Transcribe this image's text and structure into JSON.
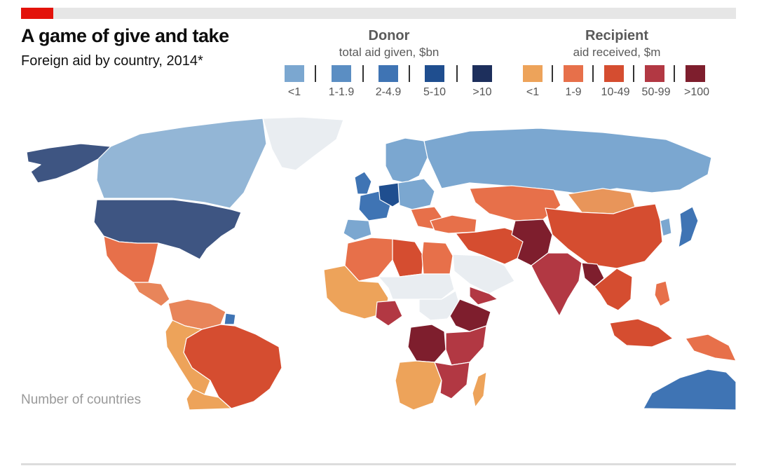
{
  "header": {
    "title": "A game of give and take",
    "subtitle": "Foreign aid by country, 2014*"
  },
  "legend": {
    "donor": {
      "heading": "Donor",
      "subheading": "total aid given, $bn",
      "bins": [
        {
          "label": "<1",
          "color": "#7ba7d0"
        },
        {
          "label": "1-1.9",
          "color": "#5b8ec3"
        },
        {
          "label": "2-4.9",
          "color": "#3f74b4"
        },
        {
          "label": "5-10",
          "color": "#1f4e8f"
        },
        {
          "label": ">10",
          "color": "#1d2f5c"
        }
      ]
    },
    "recipient": {
      "heading": "Recipient",
      "subheading": "aid received, $m",
      "bins": [
        {
          "label": "<1",
          "color": "#eda35a"
        },
        {
          "label": "1-9",
          "color": "#e7704a"
        },
        {
          "label": "10-49",
          "color": "#d54d30"
        },
        {
          "label": "50-99",
          "color": "#b23843"
        },
        {
          "label": ">100",
          "color": "#7e1e2d"
        }
      ]
    }
  },
  "map": {
    "no_data_color": "#e9edf1",
    "countries": [
      {
        "name": "alaska",
        "color": "#3e5582"
      },
      {
        "name": "canada",
        "color": "#93b6d6"
      },
      {
        "name": "greenland",
        "color": "#e9edf1"
      },
      {
        "name": "united-states",
        "color": "#3e5582"
      },
      {
        "name": "mexico",
        "color": "#e7704a"
      },
      {
        "name": "central-america",
        "color": "#e8855a"
      },
      {
        "name": "colombia-venezuela",
        "color": "#e8855a"
      },
      {
        "name": "brazil",
        "color": "#d54d30"
      },
      {
        "name": "peru-bolivia",
        "color": "#eda35a"
      },
      {
        "name": "south-cone",
        "color": "#eda35a"
      },
      {
        "name": "guiana",
        "color": "#3f74b4"
      },
      {
        "name": "russia",
        "color": "#7ba7d0"
      },
      {
        "name": "scandinavia",
        "color": "#7ba7d0"
      },
      {
        "name": "uk",
        "color": "#3f74b4"
      },
      {
        "name": "france",
        "color": "#3f74b4"
      },
      {
        "name": "germany",
        "color": "#1f4e8f"
      },
      {
        "name": "iberia",
        "color": "#7ba7d0"
      },
      {
        "name": "central-europe",
        "color": "#7ba7d0"
      },
      {
        "name": "balkans",
        "color": "#e7704a"
      },
      {
        "name": "turkey",
        "color": "#e7704a"
      },
      {
        "name": "kazakhstan",
        "color": "#e7704a"
      },
      {
        "name": "mongolia",
        "color": "#e8955a"
      },
      {
        "name": "china",
        "color": "#d54d30"
      },
      {
        "name": "japan",
        "color": "#3f74b4"
      },
      {
        "name": "korea",
        "color": "#7ba7d0"
      },
      {
        "name": "iran-iraq",
        "color": "#d54d30"
      },
      {
        "name": "arabia",
        "color": "#e9edf1"
      },
      {
        "name": "yemen",
        "color": "#b23843"
      },
      {
        "name": "pakistan-afghanistan",
        "color": "#7e1e2d"
      },
      {
        "name": "india",
        "color": "#b23843"
      },
      {
        "name": "bangladesh",
        "color": "#7e1e2d"
      },
      {
        "name": "southeast-asia",
        "color": "#d54d30"
      },
      {
        "name": "indonesia",
        "color": "#d54d30"
      },
      {
        "name": "philippines",
        "color": "#e7704a"
      },
      {
        "name": "papua",
        "color": "#e7704a"
      },
      {
        "name": "australia",
        "color": "#3f74b4"
      },
      {
        "name": "maghreb",
        "color": "#e7704a"
      },
      {
        "name": "libya",
        "color": "#d54d30"
      },
      {
        "name": "egypt",
        "color": "#e7704a"
      },
      {
        "name": "west-africa",
        "color": "#eda35a"
      },
      {
        "name": "sahel",
        "color": "#e9edf1"
      },
      {
        "name": "nigeria",
        "color": "#b23843"
      },
      {
        "name": "sudan",
        "color": "#e9edf1"
      },
      {
        "name": "ethiopia",
        "color": "#7e1e2d"
      },
      {
        "name": "drc",
        "color": "#7e1e2d"
      },
      {
        "name": "east-africa",
        "color": "#b23843"
      },
      {
        "name": "angola-south",
        "color": "#eda35a"
      },
      {
        "name": "mozambique",
        "color": "#b23843"
      },
      {
        "name": "madagascar",
        "color": "#eda35a"
      }
    ]
  },
  "footer": {
    "count_label": "Number of countries"
  }
}
